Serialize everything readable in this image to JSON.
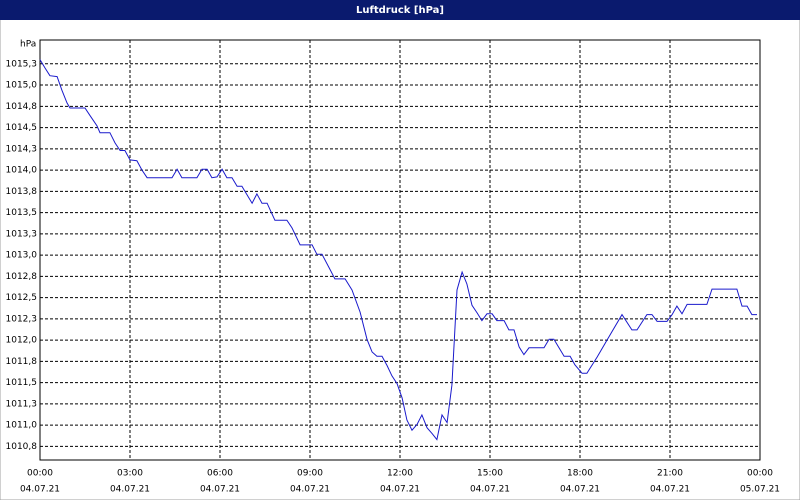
{
  "chart_data": {
    "type": "line",
    "title": "Luftdruck [hPa]",
    "ylabel": "hPa",
    "x": [
      0,
      0.17,
      0.33,
      0.57,
      0.73,
      0.9,
      1.0,
      1.5,
      1.67,
      1.9,
      2.0,
      2.33,
      2.5,
      2.67,
      2.83,
      3.0,
      3.23,
      3.4,
      3.57,
      4.4,
      4.57,
      4.73,
      5.23,
      5.4,
      5.57,
      5.73,
      5.9,
      6.07,
      6.23,
      6.4,
      6.57,
      6.73,
      6.9,
      7.07,
      7.23,
      7.4,
      7.57,
      7.83,
      8.23,
      8.4,
      8.67,
      9.07,
      9.23,
      9.4,
      9.67,
      9.83,
      10.17,
      10.4,
      10.67,
      10.9,
      11.07,
      11.23,
      11.4,
      11.57,
      11.73,
      11.9,
      12.07,
      12.23,
      12.4,
      12.57,
      12.73,
      12.9,
      13.07,
      13.23,
      13.4,
      13.57,
      13.73,
      13.9,
      14.07,
      14.23,
      14.4,
      14.57,
      14.73,
      14.9,
      15.07,
      15.23,
      15.47,
      15.63,
      15.8,
      15.97,
      16.13,
      16.3,
      16.8,
      16.97,
      17.13,
      17.3,
      17.47,
      17.67,
      17.83,
      18.07,
      18.23,
      18.57,
      18.9,
      19.4,
      19.73,
      19.9,
      20.23,
      20.4,
      20.57,
      20.9,
      21.07,
      21.23,
      21.4,
      21.57,
      22.23,
      22.4,
      23.23,
      23.4,
      23.57,
      23.73,
      23.9
    ],
    "series": [
      {
        "name": "Luftdruck",
        "color": "#1a1acc",
        "values": [
          1015.3,
          1015.2,
          1015.11,
          1015.1,
          1014.94,
          1014.79,
          1014.73,
          1014.73,
          1014.64,
          1014.52,
          1014.44,
          1014.44,
          1014.32,
          1014.23,
          1014.23,
          1014.12,
          1014.11,
          1014.0,
          1013.91,
          1013.91,
          1014.01,
          1013.91,
          1013.91,
          1014.01,
          1014.01,
          1013.91,
          1013.92,
          1014.01,
          1013.91,
          1013.91,
          1013.81,
          1013.81,
          1013.71,
          1013.61,
          1013.72,
          1013.61,
          1013.61,
          1013.41,
          1013.41,
          1013.32,
          1013.12,
          1013.12,
          1013.01,
          1013.01,
          1012.83,
          1012.72,
          1012.72,
          1012.59,
          1012.33,
          1012.01,
          1011.86,
          1011.81,
          1011.81,
          1011.7,
          1011.58,
          1011.49,
          1011.32,
          1011.06,
          1010.94,
          1011.01,
          1011.12,
          1010.97,
          1010.9,
          1010.83,
          1011.12,
          1011.03,
          1011.47,
          1012.59,
          1012.8,
          1012.66,
          1012.41,
          1012.32,
          1012.23,
          1012.31,
          1012.31,
          1012.23,
          1012.23,
          1012.12,
          1012.12,
          1011.92,
          1011.83,
          1011.91,
          1011.91,
          1012.01,
          1012.01,
          1011.91,
          1011.81,
          1011.81,
          1011.71,
          1011.61,
          1011.61,
          1011.8,
          1012.0,
          1012.3,
          1012.12,
          1012.12,
          1012.3,
          1012.3,
          1012.22,
          1012.22,
          1012.3,
          1012.4,
          1012.31,
          1012.42,
          1012.42,
          1012.6,
          1012.6,
          1012.4,
          1012.4,
          1012.3,
          1012.3
        ]
      }
    ],
    "xlim": [
      0,
      24
    ],
    "xticks": [
      {
        "value": 0,
        "label": "00:00"
      },
      {
        "value": 3,
        "label": "03:00"
      },
      {
        "value": 6,
        "label": "06:00"
      },
      {
        "value": 9,
        "label": "09:00"
      },
      {
        "value": 12,
        "label": "12:00"
      },
      {
        "value": 15,
        "label": "15:00"
      },
      {
        "value": 18,
        "label": "18:00"
      },
      {
        "value": 21,
        "label": "21:00"
      },
      {
        "value": 24,
        "label": "00:00"
      }
    ],
    "xtick_dates": [
      "04.07.21",
      "04.07.21",
      "04.07.21",
      "04.07.21",
      "04.07.21",
      "04.07.21",
      "04.07.21",
      "04.07.21",
      "05.07.21"
    ],
    "ylim": [
      1010.59,
      1015.53
    ],
    "yticks": [
      {
        "value": 1015.25,
        "label": "1015,3"
      },
      {
        "value": 1015.0,
        "label": "1015,0"
      },
      {
        "value": 1014.75,
        "label": "1014,8"
      },
      {
        "value": 1014.5,
        "label": "1014,5"
      },
      {
        "value": 1014.25,
        "label": "1014,3"
      },
      {
        "value": 1014.0,
        "label": "1014,0"
      },
      {
        "value": 1013.75,
        "label": "1013,8"
      },
      {
        "value": 1013.5,
        "label": "1013,5"
      },
      {
        "value": 1013.25,
        "label": "1013,3"
      },
      {
        "value": 1013.0,
        "label": "1013,0"
      },
      {
        "value": 1012.75,
        "label": "1012,8"
      },
      {
        "value": 1012.5,
        "label": "1012,5"
      },
      {
        "value": 1012.25,
        "label": "1012,3"
      },
      {
        "value": 1012.0,
        "label": "1012,0"
      },
      {
        "value": 1011.75,
        "label": "1011,8"
      },
      {
        "value": 1011.5,
        "label": "1011,5"
      },
      {
        "value": 1011.25,
        "label": "1011,3"
      },
      {
        "value": 1011.0,
        "label": "1011,0"
      },
      {
        "value": 1010.75,
        "label": "1010,8"
      }
    ],
    "grid": true
  }
}
